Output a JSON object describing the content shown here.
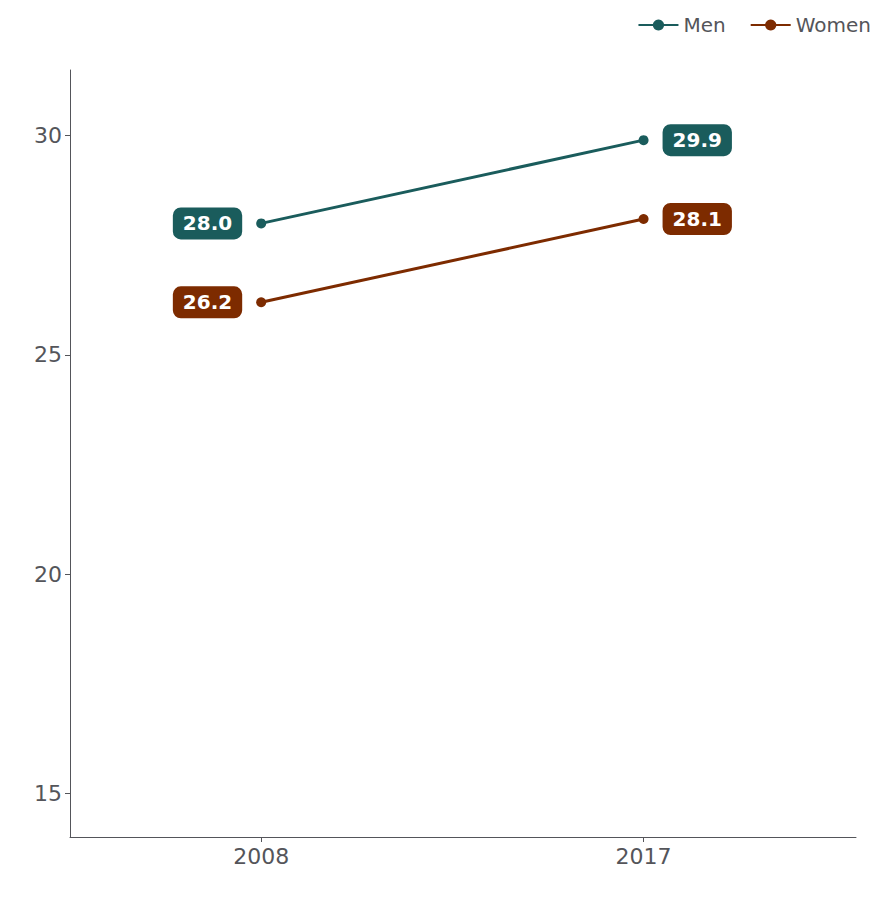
{
  "chart_data": {
    "type": "line",
    "x": [
      2008,
      2017
    ],
    "series": [
      {
        "name": "Men",
        "color": "#1a5c5c",
        "values": [
          28.0,
          29.9
        ],
        "value_labels": [
          "28.0",
          "29.9"
        ]
      },
      {
        "name": "Women",
        "color": "#7d2b00",
        "values": [
          26.2,
          28.1
        ],
        "value_labels": [
          "26.2",
          "28.1"
        ]
      }
    ],
    "xlim": [
      2003.5,
      2022.0
    ],
    "xticks": [
      2008,
      2017
    ],
    "ylim": [
      14.0,
      31.5
    ],
    "yticks": [
      15,
      20,
      25,
      30
    ],
    "grid": false,
    "legend": "upper right",
    "data_labels": true,
    "marker": "circle",
    "line_style": "solid"
  }
}
